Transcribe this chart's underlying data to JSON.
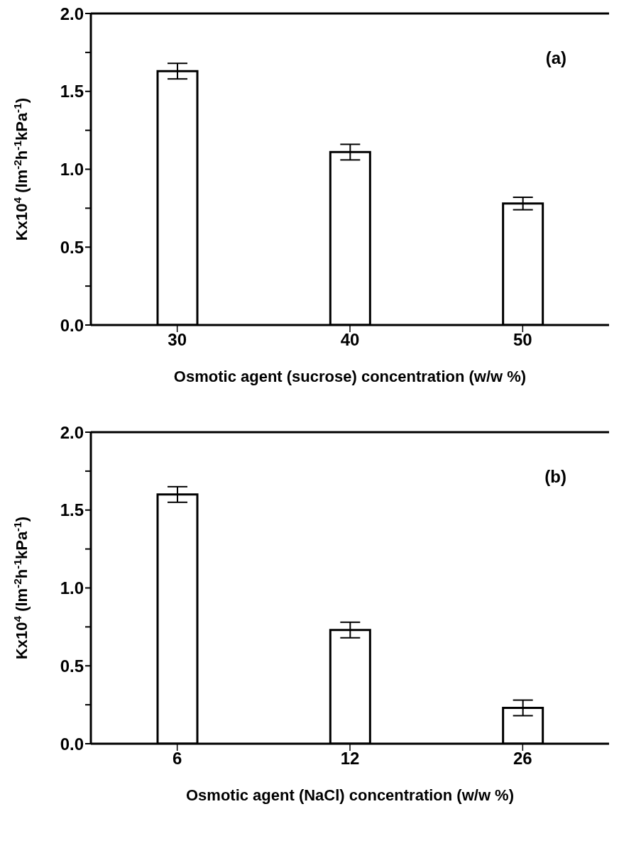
{
  "chart_data": [
    {
      "type": "bar",
      "categories": [
        "30",
        "40",
        "50"
      ],
      "values": [
        1.63,
        1.11,
        0.78
      ],
      "errors": [
        0.05,
        0.05,
        0.04
      ],
      "color": "#ffffff",
      "xlabel": "Osmotic agent (sucrose) concentration (w/w %)",
      "ylabel": "Kx10$^{4}$ (lm$^{-2}$h$^{-1}$kPa$^{-1}$)",
      "annotations": [
        "(a)"
      ],
      "ylim": [
        0,
        2
      ],
      "yticks": [
        {
          "value": 0,
          "label": "0.0"
        },
        {
          "value": 0.25,
          "label": null
        },
        {
          "value": 0.5,
          "label": "0.5"
        },
        {
          "value": 0.75,
          "label": null
        },
        {
          "value": 1,
          "label": "1.0"
        },
        {
          "value": 1.25,
          "label": null
        },
        {
          "value": 1.5,
          "label": "1.5"
        },
        {
          "value": 1.75,
          "label": null
        },
        {
          "value": 2,
          "label": "2.0"
        }
      ],
      "grid": false,
      "legend": false
    },
    {
      "type": "bar",
      "categories": [
        "6",
        "12",
        "26"
      ],
      "values": [
        1.6,
        0.73,
        0.23
      ],
      "errors": [
        0.05,
        0.05,
        0.05
      ],
      "color": "#ffffff",
      "xlabel": "Osmotic agent (NaCl) concentration (w/w %)",
      "ylabel": "Kx10$^{4}$ (lm$^{-2}$h$^{-1}$kPa$^{-1}$)",
      "annotations": [
        "(b)"
      ],
      "ylim": [
        0,
        2
      ],
      "yticks": [
        {
          "value": 0,
          "label": "0.0"
        },
        {
          "value": 0.25,
          "label": null
        },
        {
          "value": 0.5,
          "label": "0.5"
        },
        {
          "value": 0.75,
          "label": null
        },
        {
          "value": 1,
          "label": "1.0"
        },
        {
          "value": 1.25,
          "label": null
        },
        {
          "value": 1.5,
          "label": "1.5"
        },
        {
          "value": 1.75,
          "label": null
        },
        {
          "value": 2,
          "label": "2.0"
        }
      ],
      "grid": false,
      "legend": false
    }
  ]
}
